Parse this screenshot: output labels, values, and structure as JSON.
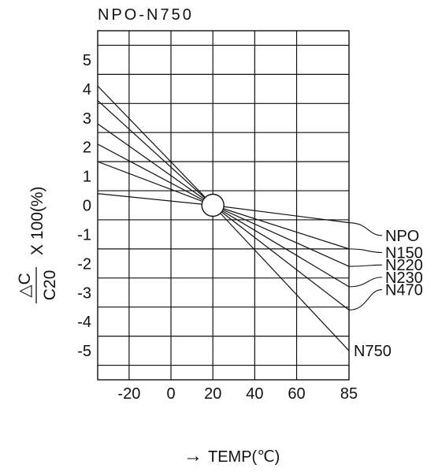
{
  "chart_data": {
    "type": "line",
    "title": "NPO-N750",
    "xlabel": "TEMP(℃)",
    "xlabel_arrow": "→",
    "ylabel": {
      "numerator": "△C",
      "denominator": "C20",
      "suffix": "X 100(%)"
    },
    "xlim": [
      -35,
      85
    ],
    "ylim": [
      -6,
      6
    ],
    "x_tick_labels": [
      "-20",
      "0",
      "20",
      "40",
      "60",
      "85"
    ],
    "y_tick_labels": [
      "5",
      "4",
      "3",
      "2",
      "1",
      "0",
      "-1",
      "-2",
      "-3",
      "-4",
      "-5"
    ],
    "reference_point": {
      "x": 20,
      "y": 0
    },
    "series": [
      {
        "name": "NPO",
        "x": [
          -35,
          20,
          85
        ],
        "y": [
          0.4,
          0,
          -0.6
        ]
      },
      {
        "name": "N150",
        "x": [
          -35,
          20,
          85
        ],
        "y": [
          1.5,
          0,
          -1.5
        ]
      },
      {
        "name": "N220",
        "x": [
          -35,
          20,
          85
        ],
        "y": [
          2.1,
          0,
          -2.1
        ]
      },
      {
        "name": "N230",
        "x": [
          -35,
          20,
          85
        ],
        "y": [
          2.8,
          0,
          -2.8
        ]
      },
      {
        "name": "N470",
        "x": [
          -35,
          20,
          85
        ],
        "y": [
          3.6,
          0,
          -3.6
        ]
      },
      {
        "name": "N750",
        "x": [
          -35,
          20,
          85
        ],
        "y": [
          4.1,
          0,
          -5.0
        ]
      }
    ]
  }
}
